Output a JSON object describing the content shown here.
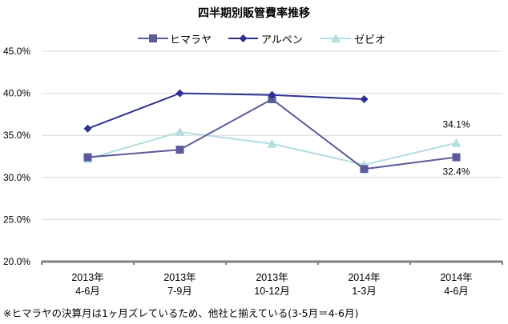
{
  "chart_data": {
    "type": "line",
    "title": "四半期別販管費率推移",
    "xlabel": "",
    "ylabel": "",
    "categories": [
      [
        "2013年",
        "4-6月"
      ],
      [
        "2013年",
        "7-9月"
      ],
      [
        "2013年",
        "10-12月"
      ],
      [
        "2014年",
        "1-3月"
      ],
      [
        "2014年",
        "4-6月"
      ]
    ],
    "ylim": [
      20.0,
      45.0
    ],
    "yticks": [
      "20.0%",
      "25.0%",
      "30.0%",
      "35.0%",
      "40.0%",
      "45.0%"
    ],
    "ytick_values": [
      20,
      25,
      30,
      35,
      40,
      45
    ],
    "grid": true,
    "legend_position": "top",
    "series": [
      {
        "name": "ヒマラヤ",
        "color": "#5b5b9b",
        "marker": "square",
        "values": [
          32.4,
          33.3,
          39.3,
          31.0,
          32.4
        ]
      },
      {
        "name": "アルペン",
        "color": "#2e3192",
        "marker": "diamond",
        "values": [
          35.8,
          40.0,
          39.8,
          39.3,
          null
        ]
      },
      {
        "name": "ゼビオ",
        "color": "#b5dde0",
        "marker": "triangle",
        "values": [
          32.2,
          35.4,
          34.0,
          31.5,
          34.1
        ]
      }
    ],
    "annotations": [
      {
        "series": "ゼビオ",
        "index": 4,
        "text": "34.1%"
      },
      {
        "series": "ヒマラヤ",
        "index": 4,
        "text": "32.4%"
      }
    ]
  },
  "footnote": "※ヒマラヤの決算月は1ヶ月ズレているため、他社と揃えている(3-5月＝4-6月)"
}
